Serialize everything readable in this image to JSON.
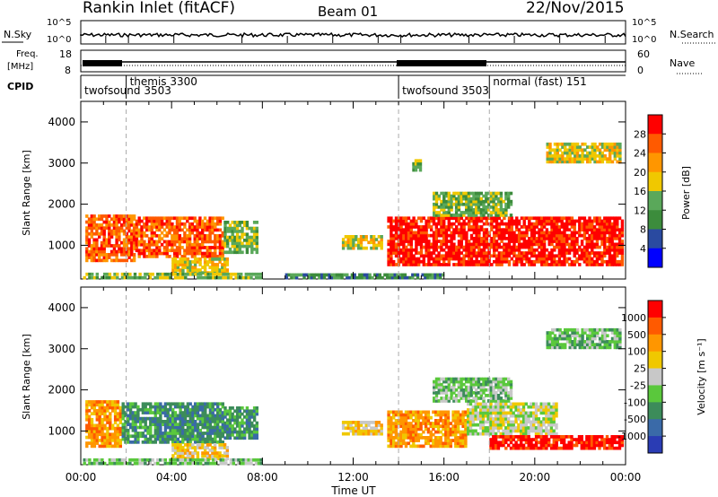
{
  "header": {
    "station": "Rankin Inlet (fitACF)",
    "beam": "Beam 01",
    "date": "22/Nov/2015"
  },
  "nsky": {
    "left_label": "N.Sky",
    "right_label": "N.Search",
    "ticks": [
      "10^5",
      "10^0"
    ]
  },
  "freq": {
    "left_label_1": "Freq.",
    "left_label_2": "[MHz]",
    "right_label": "Nave",
    "left_ticks": [
      "18",
      "8"
    ],
    "right_ticks": [
      "60",
      "0"
    ]
  },
  "cpid": {
    "label": "CPID",
    "segments": [
      {
        "label": "twofsound 3503",
        "start_hour": 0.0
      },
      {
        "label": "themis 3300",
        "start_hour": 2.0
      },
      {
        "label": "twofsound 3503",
        "start_hour": 14.0
      },
      {
        "label": "normal (fast) 151",
        "start_hour": 18.0
      }
    ]
  },
  "colors": {
    "power": [
      "#0000ff",
      "#2a4aa0",
      "#3c8c3c",
      "#5aa85a",
      "#f0c800",
      "#ff9600",
      "#ff5a00",
      "#ff0000"
    ],
    "velocity": [
      "#2a3cb4",
      "#3a6aa8",
      "#3c8c5a",
      "#5ac83c",
      "#c8c8c8",
      "#f0c800",
      "#ff9600",
      "#ff5a00",
      "#ff0000"
    ],
    "grey": "#c8c8c8"
  },
  "chart_data": [
    {
      "type": "heatmap",
      "name": "power",
      "ylabel": "Slant Range [km]",
      "xlabel": "Time UT",
      "xlim_hours": [
        0,
        24
      ],
      "ylim": [
        180,
        4500
      ],
      "yticks": [
        1000,
        2000,
        3000,
        4000
      ],
      "xticks": [
        "00:00",
        "04:00",
        "08:00",
        "12:00",
        "16:00",
        "20:00",
        "00:00"
      ],
      "colorbar_label": "Power [dB]",
      "colorbar_ticks": [
        "28",
        "24",
        "20",
        "16",
        "12",
        "8",
        "4"
      ],
      "dashed_lines_hours": [
        2.0,
        14.0,
        18.0
      ],
      "regions": [
        {
          "t0": 0.2,
          "t1": 2.4,
          "r0": 600,
          "r1": 1750,
          "level": 6
        },
        {
          "t0": 2.4,
          "t1": 6.3,
          "r0": 700,
          "r1": 1700,
          "level": 6
        },
        {
          "t0": 6.3,
          "t1": 7.8,
          "r0": 800,
          "r1": 1600,
          "level": 3
        },
        {
          "t0": 4.0,
          "t1": 6.5,
          "r0": 300,
          "r1": 700,
          "level": 4
        },
        {
          "t0": 11.5,
          "t1": 13.3,
          "r0": 900,
          "r1": 1250,
          "level": 4
        },
        {
          "t0": 13.5,
          "t1": 23.9,
          "r0": 500,
          "r1": 1700,
          "level": 7
        },
        {
          "t0": 15.5,
          "t1": 19.0,
          "r0": 1700,
          "r1": 2300,
          "level": 3
        },
        {
          "t0": 20.5,
          "t1": 23.8,
          "r0": 3000,
          "r1": 3500,
          "level": 4
        },
        {
          "t0": 14.6,
          "t1": 15.0,
          "r0": 2800,
          "r1": 3100,
          "level": 3
        },
        {
          "t0": 0.1,
          "t1": 8.0,
          "r0": 180,
          "r1": 350,
          "level": 3
        },
        {
          "t0": 9.0,
          "t1": 16.0,
          "r0": 180,
          "r1": 320,
          "level": 2
        }
      ]
    },
    {
      "type": "heatmap",
      "name": "velocity",
      "ylabel": "Slant Range [km]",
      "xlabel": "Time UT",
      "xlim_hours": [
        0,
        24
      ],
      "ylim": [
        180,
        4500
      ],
      "yticks": [
        1000,
        2000,
        3000,
        4000
      ],
      "xticks": [
        "00:00",
        "04:00",
        "08:00",
        "12:00",
        "16:00",
        "20:00",
        "00:00"
      ],
      "colorbar_label": "Velocity [m s^-1]",
      "colorbar_ticks": [
        "1000",
        "500",
        "100",
        "25",
        "-25",
        "-100",
        "-500",
        "-1000"
      ],
      "dashed_lines_hours": [
        2.0,
        14.0,
        18.0
      ],
      "regions": [
        {
          "t0": 0.2,
          "t1": 1.8,
          "r0": 600,
          "r1": 1750,
          "level": 6
        },
        {
          "t0": 1.8,
          "t1": 6.3,
          "r0": 700,
          "r1": 1700,
          "level": 2
        },
        {
          "t0": 6.3,
          "t1": 7.8,
          "r0": 800,
          "r1": 1600,
          "level": 2
        },
        {
          "t0": 4.0,
          "t1": 6.5,
          "r0": 300,
          "r1": 700,
          "level": 5
        },
        {
          "t0": 11.5,
          "t1": 13.3,
          "r0": 900,
          "r1": 1250,
          "level": 5
        },
        {
          "t0": 13.5,
          "t1": 17.0,
          "r0": 600,
          "r1": 1500,
          "level": 6
        },
        {
          "t0": 17.0,
          "t1": 21.0,
          "r0": 900,
          "r1": 1700,
          "level": 4
        },
        {
          "t0": 18.0,
          "t1": 23.9,
          "r0": 550,
          "r1": 900,
          "level": 8
        },
        {
          "t0": 20.5,
          "t1": 23.8,
          "r0": 3000,
          "r1": 3500,
          "level": 3
        },
        {
          "t0": 15.5,
          "t1": 19.0,
          "r0": 1700,
          "r1": 2300,
          "level": 3
        },
        {
          "t0": 0.1,
          "t1": 8.0,
          "r0": 180,
          "r1": 350,
          "level": 3
        }
      ]
    }
  ]
}
